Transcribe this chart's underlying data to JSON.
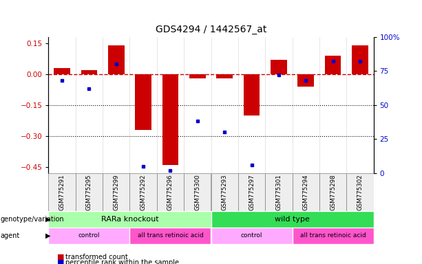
{
  "title": "GDS4294 / 1442567_at",
  "samples": [
    "GSM775291",
    "GSM775295",
    "GSM775299",
    "GSM775292",
    "GSM775296",
    "GSM775300",
    "GSM775293",
    "GSM775297",
    "GSM775301",
    "GSM775294",
    "GSM775298",
    "GSM775302"
  ],
  "red_values": [
    0.03,
    0.02,
    0.14,
    -0.27,
    -0.44,
    -0.02,
    -0.02,
    -0.2,
    0.07,
    -0.06,
    0.09,
    0.14
  ],
  "blue_values": [
    68,
    62,
    80,
    5,
    2,
    38,
    30,
    6,
    72,
    68,
    82,
    82
  ],
  "ylim_left": [
    -0.48,
    0.18
  ],
  "ylim_right": [
    0,
    100
  ],
  "yticks_left": [
    0.15,
    0.0,
    -0.15,
    -0.3,
    -0.45
  ],
  "yticks_right": [
    100,
    75,
    50,
    25,
    0
  ],
  "hline_y": 0.0,
  "dotted_lines": [
    -0.15,
    -0.3
  ],
  "genotype_groups": [
    {
      "label": "RARa knockout",
      "start": 0,
      "end": 6,
      "color": "#aaffaa"
    },
    {
      "label": "wild type",
      "start": 6,
      "end": 12,
      "color": "#33dd55"
    }
  ],
  "agent_groups": [
    {
      "label": "control",
      "start": 0,
      "end": 3,
      "color": "#ffaaff"
    },
    {
      "label": "all trans retinoic acid",
      "start": 3,
      "end": 6,
      "color": "#ff55cc"
    },
    {
      "label": "control",
      "start": 6,
      "end": 9,
      "color": "#ffaaff"
    },
    {
      "label": "all trans retinoic acid",
      "start": 9,
      "end": 12,
      "color": "#ff55cc"
    }
  ],
  "legend_red_label": "transformed count",
  "legend_blue_label": "percentile rank within the sample",
  "bar_color": "#CC0000",
  "dot_color": "#0000CC",
  "hline_color": "#CC0000",
  "title_fontsize": 10,
  "tick_fontsize": 7.5,
  "label_fontsize": 8
}
